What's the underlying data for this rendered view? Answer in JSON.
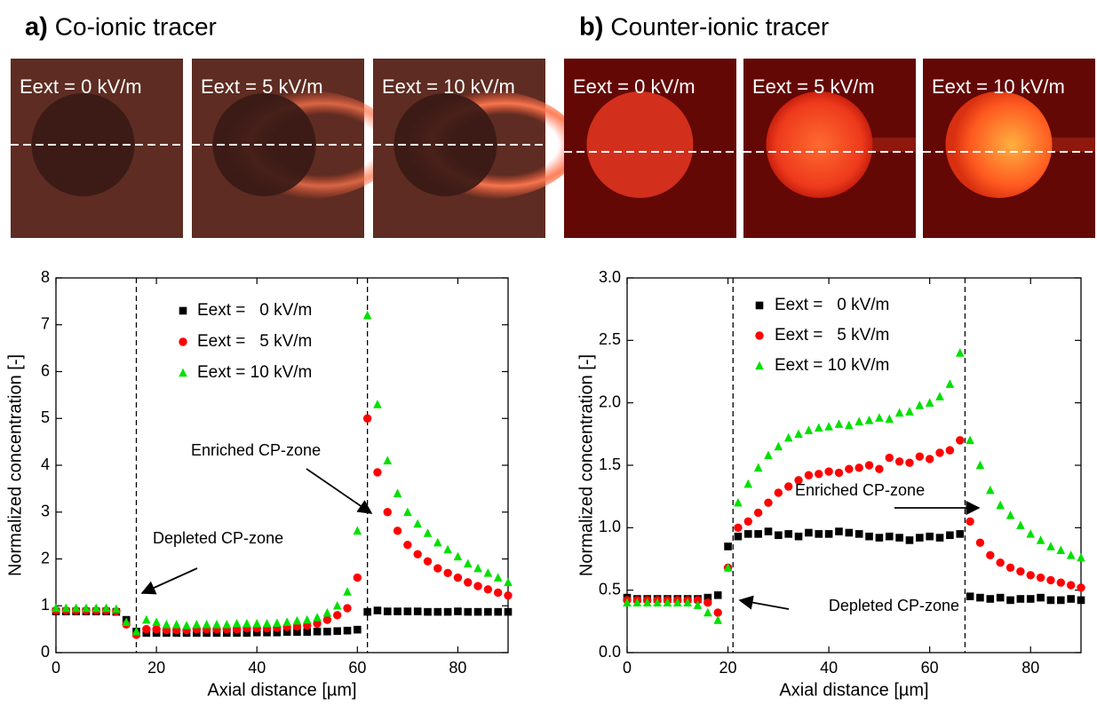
{
  "panels": [
    {
      "label": "a)",
      "title": "Co-ionic tracer",
      "image_labels": [
        "Eext = 0 kV/m",
        "Eext = 5 kV/m",
        "Eext = 10 kV/m"
      ]
    },
    {
      "label": "b)",
      "title": "Counter-ionic tracer",
      "image_labels": [
        "Eext = 0 kV/m",
        "Eext = 5 kV/m",
        "Eext = 10 kV/m"
      ]
    }
  ],
  "chart_data": [
    {
      "type": "scatter",
      "xlabel": "Axial distance   [µm]",
      "ylabel": "Normalized concentration   [-]",
      "xlim": [
        0,
        90
      ],
      "xticks": [
        0,
        20,
        40,
        60,
        80
      ],
      "ylim": [
        0,
        8
      ],
      "yticks": [
        0,
        1,
        2,
        3,
        4,
        5,
        6,
        7,
        8
      ],
      "vlines": [
        16,
        62
      ],
      "legend": "upper center",
      "annotations": [
        "Enriched CP-zone",
        "Depleted CP-zone"
      ],
      "x": [
        0,
        2,
        4,
        6,
        8,
        10,
        12,
        14,
        16,
        18,
        20,
        22,
        24,
        26,
        28,
        30,
        32,
        34,
        36,
        38,
        40,
        42,
        44,
        46,
        48,
        50,
        52,
        54,
        56,
        58,
        60,
        62,
        64,
        66,
        68,
        70,
        72,
        74,
        76,
        78,
        80,
        82,
        84,
        86,
        88,
        90
      ],
      "series": [
        {
          "name": "Eext =   0 kV/m",
          "color": "#000000",
          "marker": "square",
          "values": [
            0.88,
            0.88,
            0.88,
            0.88,
            0.88,
            0.88,
            0.87,
            0.7,
            0.45,
            0.42,
            0.42,
            0.42,
            0.42,
            0.42,
            0.42,
            0.42,
            0.42,
            0.42,
            0.42,
            0.42,
            0.43,
            0.43,
            0.43,
            0.44,
            0.44,
            0.44,
            0.45,
            0.45,
            0.46,
            0.47,
            0.49,
            0.87,
            0.9,
            0.88,
            0.88,
            0.88,
            0.88,
            0.87,
            0.87,
            0.87,
            0.88,
            0.87,
            0.87,
            0.87,
            0.87,
            0.87
          ]
        },
        {
          "name": "Eext =   5 kV/m",
          "color": "#ff0000",
          "marker": "circle",
          "values": [
            0.9,
            0.9,
            0.9,
            0.9,
            0.9,
            0.9,
            0.88,
            0.6,
            0.38,
            0.5,
            0.5,
            0.48,
            0.48,
            0.48,
            0.5,
            0.5,
            0.5,
            0.5,
            0.5,
            0.52,
            0.52,
            0.52,
            0.53,
            0.55,
            0.56,
            0.58,
            0.62,
            0.7,
            0.8,
            0.95,
            1.6,
            5.0,
            3.85,
            3.0,
            2.6,
            2.3,
            2.1,
            1.95,
            1.8,
            1.7,
            1.6,
            1.5,
            1.42,
            1.35,
            1.28,
            1.22
          ]
        },
        {
          "name": "Eext = 10 kV/m",
          "color": "#00e000",
          "marker": "triangle",
          "values": [
            0.95,
            0.95,
            0.95,
            0.95,
            0.95,
            0.95,
            0.93,
            0.65,
            0.45,
            0.7,
            0.65,
            0.6,
            0.6,
            0.58,
            0.6,
            0.6,
            0.6,
            0.6,
            0.62,
            0.62,
            0.62,
            0.62,
            0.63,
            0.65,
            0.68,
            0.7,
            0.75,
            0.85,
            1.0,
            1.3,
            2.6,
            7.2,
            5.3,
            4.1,
            3.4,
            3.0,
            2.75,
            2.55,
            2.35,
            2.2,
            2.05,
            1.9,
            1.8,
            1.7,
            1.6,
            1.5
          ]
        }
      ]
    },
    {
      "type": "scatter",
      "xlabel": "Axial distance   [µm]",
      "ylabel": "Normalized concentration   [-]",
      "xlim": [
        0,
        90
      ],
      "xticks": [
        0,
        20,
        40,
        60,
        80
      ],
      "ylim": [
        0,
        3
      ],
      "yticks": [
        {
          "value": 0,
          "label": "0.0"
        },
        0.5,
        {
          "value": 1,
          "label": "1.0"
        },
        1.5,
        {
          "value": 2,
          "label": "2.0"
        },
        2.5,
        {
          "value": 3,
          "label": "3.0"
        }
      ],
      "vlines": [
        21,
        67
      ],
      "legend": "upper center",
      "annotations": [
        "Enriched CP-zone",
        "Depleted CP-zone"
      ],
      "x": [
        0,
        2,
        4,
        6,
        8,
        10,
        12,
        14,
        16,
        18,
        20,
        22,
        24,
        26,
        28,
        30,
        32,
        34,
        36,
        38,
        40,
        42,
        44,
        46,
        48,
        50,
        52,
        54,
        56,
        58,
        60,
        62,
        64,
        66,
        68,
        70,
        72,
        74,
        76,
        78,
        80,
        82,
        84,
        86,
        88,
        90
      ],
      "series": [
        {
          "name": "Eext =   0 kV/m",
          "color": "#000000",
          "marker": "square",
          "values": [
            0.44,
            0.43,
            0.43,
            0.43,
            0.43,
            0.43,
            0.43,
            0.43,
            0.44,
            0.46,
            0.85,
            0.93,
            0.95,
            0.95,
            0.97,
            0.94,
            0.95,
            0.93,
            0.96,
            0.95,
            0.95,
            0.97,
            0.96,
            0.95,
            0.93,
            0.92,
            0.93,
            0.92,
            0.9,
            0.92,
            0.93,
            0.92,
            0.94,
            0.95,
            0.45,
            0.44,
            0.43,
            0.44,
            0.42,
            0.43,
            0.43,
            0.44,
            0.42,
            0.42,
            0.43,
            0.42
          ]
        },
        {
          "name": "Eext =   5 kV/m",
          "color": "#ff0000",
          "marker": "circle",
          "values": [
            0.42,
            0.42,
            0.42,
            0.42,
            0.42,
            0.42,
            0.42,
            0.42,
            0.4,
            0.32,
            0.68,
            1.0,
            1.05,
            1.12,
            1.2,
            1.28,
            1.33,
            1.38,
            1.42,
            1.43,
            1.45,
            1.44,
            1.47,
            1.48,
            1.5,
            1.47,
            1.56,
            1.53,
            1.52,
            1.57,
            1.55,
            1.6,
            1.62,
            1.7,
            1.05,
            0.88,
            0.78,
            0.72,
            0.68,
            0.65,
            0.62,
            0.6,
            0.58,
            0.56,
            0.54,
            0.52
          ]
        },
        {
          "name": "Eext = 10 kV/m",
          "color": "#00e000",
          "marker": "triangle",
          "values": [
            0.4,
            0.4,
            0.4,
            0.4,
            0.4,
            0.4,
            0.4,
            0.38,
            0.32,
            0.26,
            0.68,
            1.2,
            1.35,
            1.48,
            1.58,
            1.65,
            1.72,
            1.75,
            1.78,
            1.8,
            1.81,
            1.83,
            1.82,
            1.85,
            1.86,
            1.88,
            1.87,
            1.92,
            1.93,
            1.98,
            2.0,
            2.05,
            2.15,
            2.4,
            1.7,
            1.5,
            1.3,
            1.18,
            1.1,
            1.02,
            0.95,
            0.9,
            0.85,
            0.82,
            0.78,
            0.76
          ]
        }
      ]
    }
  ]
}
